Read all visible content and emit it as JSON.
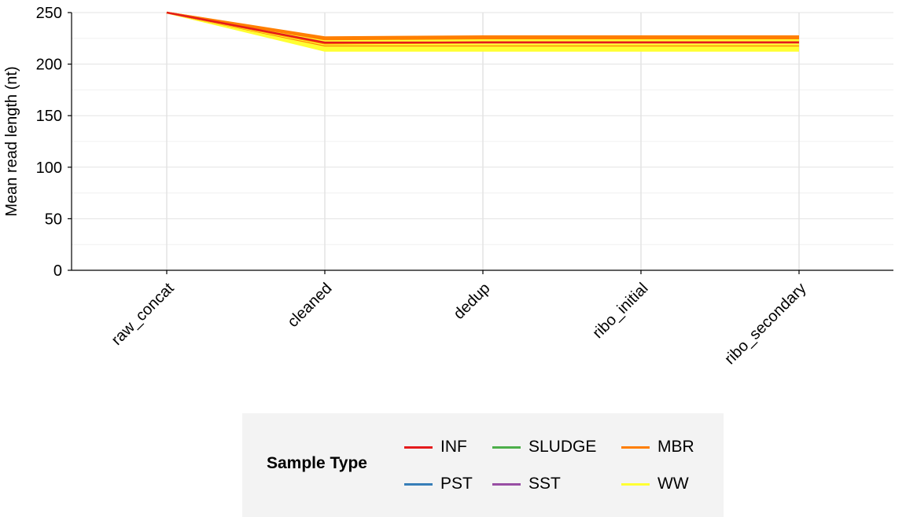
{
  "chart_data": {
    "type": "line",
    "title": "",
    "xlabel": "",
    "ylabel": "Mean read length (nt)",
    "categories": [
      "raw_concat",
      "cleaned",
      "dedup",
      "ribo_initial",
      "ribo_secondary"
    ],
    "yticks": [
      0,
      50,
      100,
      150,
      200,
      250
    ],
    "ylim": [
      0,
      250
    ],
    "grid": true,
    "legend": {
      "title": "Sample Type",
      "placement": "bottom",
      "entries": [
        {
          "name": "INF",
          "color": "#e41a1c"
        },
        {
          "name": "SLUDGE",
          "color": "#4daf4a"
        },
        {
          "name": "MBR",
          "color": "#ff7f00"
        },
        {
          "name": "PST",
          "color": "#377eb8"
        },
        {
          "name": "SST",
          "color": "#984ea3"
        },
        {
          "name": "WW",
          "color": "#ffff33"
        }
      ]
    },
    "series": [
      {
        "name": "WW",
        "color": "#ffff33",
        "values": [
          250,
          213,
          213,
          213,
          213
        ]
      },
      {
        "name": "WW",
        "color": "#ffff33",
        "values": [
          250,
          214,
          214,
          214,
          214
        ]
      },
      {
        "name": "WW",
        "color": "#ffff33",
        "values": [
          250,
          215,
          215,
          215,
          215
        ]
      },
      {
        "name": "WW",
        "color": "#ffff33",
        "values": [
          250,
          216,
          216,
          216,
          216
        ]
      },
      {
        "name": "WW",
        "color": "#ffff33",
        "values": [
          250,
          217,
          217,
          217,
          217
        ]
      },
      {
        "name": "MBR",
        "color": "#ff7f00",
        "values": [
          250,
          218,
          218,
          218,
          218
        ]
      },
      {
        "name": "WW",
        "color": "#ffff33",
        "values": [
          250,
          219,
          219,
          219,
          219
        ]
      },
      {
        "name": "MBR",
        "color": "#ff7f00",
        "values": [
          250,
          220,
          221,
          221,
          221
        ]
      },
      {
        "name": "INF",
        "color": "#e41a1c",
        "values": [
          250,
          221,
          222,
          222,
          222
        ]
      },
      {
        "name": "WW",
        "color": "#ffff33",
        "values": [
          250,
          222,
          223,
          223,
          223
        ]
      },
      {
        "name": "WW",
        "color": "#ffff33",
        "values": [
          250,
          223,
          224,
          224,
          224
        ]
      },
      {
        "name": "MBR",
        "color": "#ff7f00",
        "values": [
          250,
          224,
          225,
          225,
          225
        ]
      },
      {
        "name": "MBR",
        "color": "#ff7f00",
        "values": [
          250,
          225,
          226,
          226,
          226
        ]
      },
      {
        "name": "MBR",
        "color": "#ff7f00",
        "values": [
          250,
          226,
          227,
          227,
          227
        ]
      },
      {
        "name": "INF",
        "color": "#e41a1c",
        "values": [
          250,
          221,
          221,
          221,
          221
        ]
      }
    ]
  }
}
